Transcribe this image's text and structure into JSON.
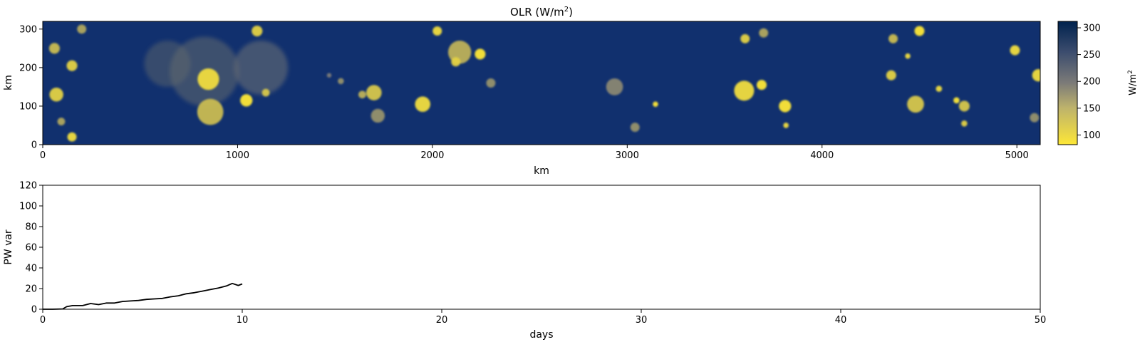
{
  "chart_data": [
    {
      "type": "heatmap",
      "title_main": "OLR (W/m",
      "title_sup": "2",
      "title_close": ")",
      "xlabel": "km",
      "ylabel": "km",
      "xlim": [
        0,
        5120
      ],
      "ylim": [
        0,
        320
      ],
      "xticks": [
        0,
        1000,
        2000,
        3000,
        4000,
        5000
      ],
      "yticks": [
        0,
        100,
        200,
        300
      ],
      "colormap": "cividis_r",
      "colors": {
        "low": "#fde737",
        "mid": "#7c7b78",
        "high": "#00224e",
        "background": "#11306e"
      },
      "colorbar": {
        "label_main": "W/m",
        "label_sup": "2",
        "ticks": [
          100,
          150,
          200,
          250,
          300
        ],
        "range": [
          82,
          312
        ]
      },
      "features": [
        {
          "x": 850,
          "y": 170,
          "r": 28,
          "v": 0.95
        },
        {
          "x": 860,
          "y": 85,
          "r": 34,
          "v": 0.8
        },
        {
          "x": 1045,
          "y": 115,
          "r": 16,
          "v": 1.0
        },
        {
          "x": 1100,
          "y": 295,
          "r": 14,
          "v": 0.9
        },
        {
          "x": 1145,
          "y": 135,
          "r": 10,
          "v": 0.85
        },
        {
          "x": 70,
          "y": 130,
          "r": 18,
          "v": 0.9
        },
        {
          "x": 60,
          "y": 250,
          "r": 14,
          "v": 0.8
        },
        {
          "x": 150,
          "y": 205,
          "r": 14,
          "v": 0.9
        },
        {
          "x": 150,
          "y": 20,
          "r": 12,
          "v": 0.95
        },
        {
          "x": 95,
          "y": 60,
          "r": 10,
          "v": 0.7
        },
        {
          "x": 200,
          "y": 300,
          "r": 12,
          "v": 0.7
        },
        {
          "x": 1700,
          "y": 135,
          "r": 20,
          "v": 0.85
        },
        {
          "x": 1720,
          "y": 75,
          "r": 18,
          "v": 0.6
        },
        {
          "x": 1640,
          "y": 130,
          "r": 10,
          "v": 0.75
        },
        {
          "x": 1950,
          "y": 105,
          "r": 20,
          "v": 0.95
        },
        {
          "x": 2025,
          "y": 295,
          "r": 12,
          "v": 0.95
        },
        {
          "x": 2140,
          "y": 240,
          "r": 30,
          "v": 0.75
        },
        {
          "x": 2120,
          "y": 215,
          "r": 12,
          "v": 0.9
        },
        {
          "x": 2245,
          "y": 235,
          "r": 14,
          "v": 1.0
        },
        {
          "x": 2300,
          "y": 160,
          "r": 12,
          "v": 0.6
        },
        {
          "x": 2935,
          "y": 150,
          "r": 22,
          "v": 0.55
        },
        {
          "x": 3040,
          "y": 45,
          "r": 12,
          "v": 0.6
        },
        {
          "x": 3145,
          "y": 105,
          "r": 7,
          "v": 1.0
        },
        {
          "x": 3600,
          "y": 140,
          "r": 26,
          "v": 0.95
        },
        {
          "x": 3690,
          "y": 155,
          "r": 13,
          "v": 1.0
        },
        {
          "x": 3605,
          "y": 275,
          "r": 12,
          "v": 0.9
        },
        {
          "x": 3700,
          "y": 290,
          "r": 12,
          "v": 0.7
        },
        {
          "x": 3810,
          "y": 100,
          "r": 16,
          "v": 1.0
        },
        {
          "x": 3815,
          "y": 50,
          "r": 7,
          "v": 0.95
        },
        {
          "x": 4355,
          "y": 180,
          "r": 13,
          "v": 0.9
        },
        {
          "x": 4365,
          "y": 275,
          "r": 12,
          "v": 0.8
        },
        {
          "x": 4440,
          "y": 230,
          "r": 7,
          "v": 0.95
        },
        {
          "x": 4500,
          "y": 295,
          "r": 13,
          "v": 1.0
        },
        {
          "x": 4480,
          "y": 105,
          "r": 22,
          "v": 0.85
        },
        {
          "x": 4600,
          "y": 145,
          "r": 8,
          "v": 0.95
        },
        {
          "x": 4690,
          "y": 115,
          "r": 8,
          "v": 1.0
        },
        {
          "x": 4730,
          "y": 100,
          "r": 14,
          "v": 0.85
        },
        {
          "x": 4730,
          "y": 55,
          "r": 8,
          "v": 0.9
        },
        {
          "x": 4990,
          "y": 245,
          "r": 13,
          "v": 0.95
        },
        {
          "x": 5110,
          "y": 180,
          "r": 16,
          "v": 0.95
        },
        {
          "x": 5090,
          "y": 70,
          "r": 12,
          "v": 0.6
        },
        {
          "x": 1530,
          "y": 165,
          "r": 8,
          "v": 0.6
        },
        {
          "x": 1470,
          "y": 180,
          "r": 6,
          "v": 0.5
        },
        {
          "x": 640,
          "y": 210,
          "r": 60,
          "v": 0.35
        },
        {
          "x": 1120,
          "y": 200,
          "r": 70,
          "v": 0.45
        },
        {
          "x": 830,
          "y": 190,
          "r": 90,
          "v": 0.4
        }
      ]
    },
    {
      "type": "line",
      "xlabel": "days",
      "ylabel": "PW var",
      "xlim": [
        0,
        50
      ],
      "ylim": [
        0,
        120
      ],
      "xticks": [
        0,
        10,
        20,
        30,
        40,
        50
      ],
      "yticks": [
        0,
        20,
        40,
        60,
        80,
        100,
        120
      ],
      "series": [
        {
          "color": "#000000",
          "x": [
            0,
            0.5,
            1.0,
            1.2,
            1.5,
            2.0,
            2.4,
            2.8,
            3.2,
            3.6,
            4.0,
            4.4,
            4.8,
            5.2,
            5.6,
            6.0,
            6.4,
            6.8,
            7.2,
            7.6,
            8.0,
            8.4,
            8.8,
            9.2,
            9.5,
            9.8,
            10.0
          ],
          "y": [
            0,
            0,
            0.3,
            2.5,
            3.5,
            3.5,
            5.5,
            4.5,
            6.0,
            6.0,
            7.5,
            8.0,
            8.5,
            9.5,
            10.0,
            10.5,
            12.0,
            13.0,
            15.0,
            16.0,
            17.5,
            19.0,
            20.5,
            22.5,
            25.0,
            23.0,
            24.5
          ]
        }
      ]
    }
  ]
}
